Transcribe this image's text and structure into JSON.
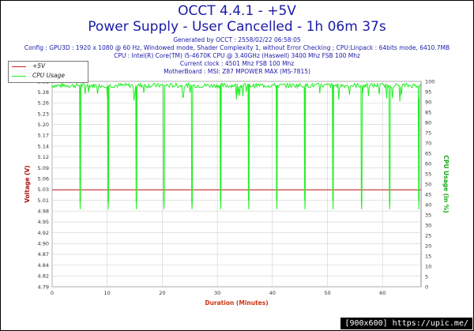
{
  "header": {
    "title_line1": "OCCT 4.4.1 - +5V",
    "title_line2": "Power Supply - User Cancelled - 1h 06m 37s",
    "generated": "Generated by OCCT : 2558/02/22 06:58:05",
    "config": "Config : GPU3D : 1920 x 1080 @ 60 Hz, Windowed mode, Shader Complexity 1, without Error Checking ; CPU:Linpack : 64bits mode, 6410.7MB",
    "cpu": "CPU : Intel(R) Core(TM) i5-4670K CPU @ 3.40GHz (Haswell) 3400 Mhz FSB 100 Mhz",
    "clock": "Current clock : 4501 Mhz FSB 100 Mhz",
    "motherboard": "MotherBoard : MSI: Z87 MPOWER MAX (MS-7815)"
  },
  "watermark": "[900x600] https://upic.me/",
  "colors": {
    "voltage": "#cc2222",
    "cpu": "#22ee22",
    "grid": "#d0d0d0",
    "title": "#1a1aa8",
    "ylabel_left": "#aa1111",
    "ylabel_right": "#11aa11",
    "xlabel": "#cc3311"
  },
  "chart_data": {
    "type": "line",
    "xlabel": "Duration (Minutes)",
    "ylabel": "Voltage (V)",
    "y2label": "CPU Usage (in %)",
    "xlim": [
      0,
      67
    ],
    "ylim": [
      4.79,
      5.32
    ],
    "y2lim": [
      0,
      100
    ],
    "xticks": [
      0,
      10,
      20,
      30,
      40,
      50,
      60
    ],
    "yticks": [
      "4.79",
      "4.82",
      "4.84",
      "4.87",
      "4.90",
      "4.92",
      "4.95",
      "4.98",
      "5.01",
      "5.03",
      "5.06",
      "5.09",
      "5.12",
      "5.14",
      "5.17",
      "5.20",
      "5.23",
      "5.26",
      "5.28",
      "5.31"
    ],
    "y2ticks": [
      0,
      5,
      10,
      15,
      20,
      25,
      30,
      35,
      40,
      45,
      50,
      55,
      60,
      65,
      70,
      75,
      80,
      85,
      90,
      95,
      100
    ],
    "grid": true,
    "legend_position": "top-left",
    "series": [
      {
        "name": "+5V",
        "axis": "left",
        "x": [
          0,
          67
        ],
        "values": [
          5.04,
          5.04
        ]
      },
      {
        "name": "CPU Usage",
        "axis": "right",
        "baseline": 98,
        "dips": [
          {
            "x": 5.1,
            "value": 38
          },
          {
            "x": 10.2,
            "value": 38
          },
          {
            "x": 15.3,
            "value": 38
          },
          {
            "x": 20.3,
            "value": 38
          },
          {
            "x": 25.4,
            "value": 38
          },
          {
            "x": 30.6,
            "value": 38
          },
          {
            "x": 35.7,
            "value": 38
          },
          {
            "x": 40.8,
            "value": 38
          },
          {
            "x": 45.9,
            "value": 38
          },
          {
            "x": 51.0,
            "value": 38
          },
          {
            "x": 56.2,
            "value": 38
          },
          {
            "x": 61.3,
            "value": 38
          },
          {
            "x": 66.6,
            "value": 38
          }
        ]
      }
    ]
  }
}
